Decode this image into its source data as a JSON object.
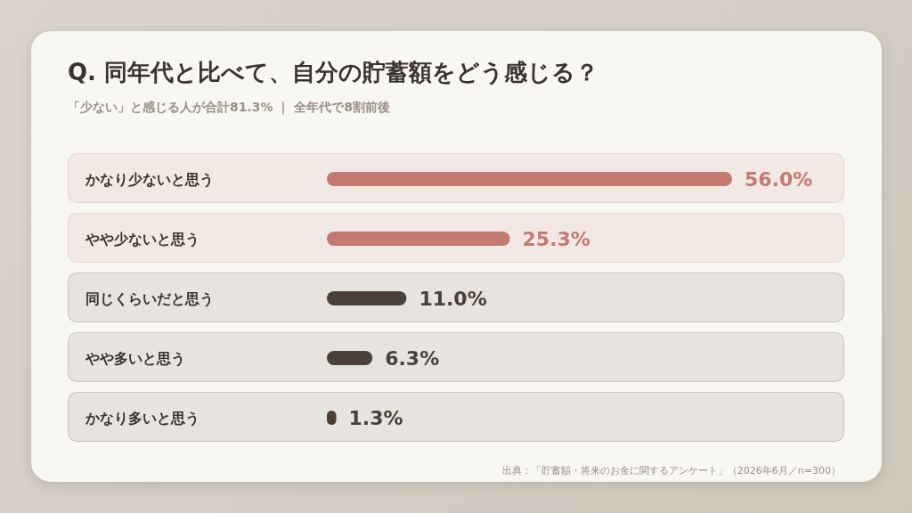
{
  "chart_data": {
    "type": "bar",
    "orientation": "horizontal",
    "title": "Q. 同年代と比べて、自分の貯蓄額をどう感じる？",
    "subtitle": "「少ない」と感じる人が合計81.3% ｜ 全年代で8割前後",
    "categories": [
      "かなり少ないと思う",
      "やや少ないと思う",
      "同じくらいだと思う",
      "やや多いと思う",
      "かなり多いと思う"
    ],
    "values": [
      56.0,
      25.3,
      11.0,
      6.3,
      1.3
    ],
    "colors": [
      "#c47a70",
      "#c47a70",
      "#4a4038",
      "#4a4038",
      "#4a4038"
    ],
    "value_labels": [
      "56.0%",
      "25.3%",
      "11.0%",
      "6.3%",
      "1.3%"
    ],
    "relative": false,
    "annotations": [
      "出典：「貯蓄額・将来のお金に関するアンケート」（2026年6月／n=300）"
    ]
  }
}
